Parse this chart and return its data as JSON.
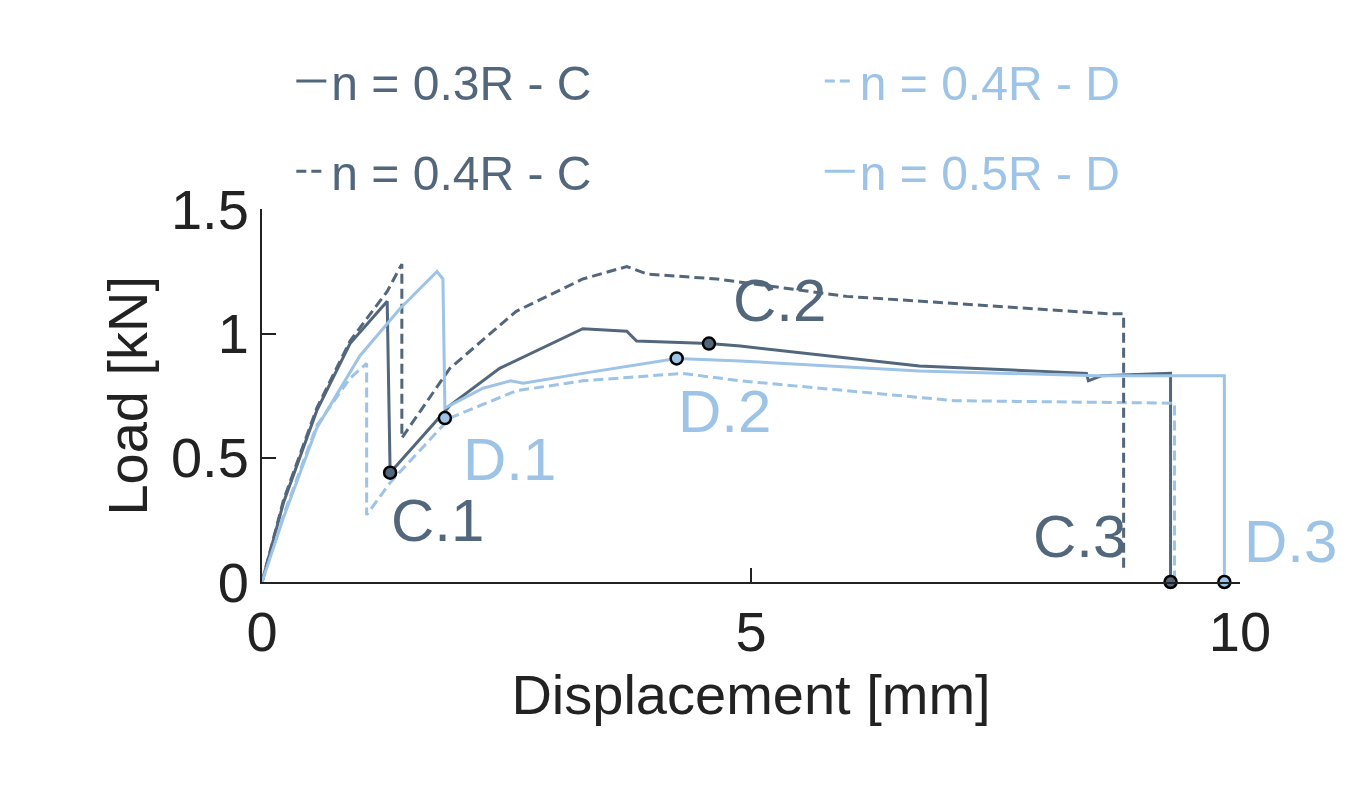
{
  "chart_data": {
    "type": "line",
    "xlabel": "Displacement [mm]",
    "ylabel": "Load [kN]",
    "xlim": [
      0,
      10
    ],
    "ylim": [
      0,
      1.5
    ],
    "xticks": [
      0,
      5,
      10
    ],
    "yticks": [
      0,
      0.5,
      1,
      1.5
    ],
    "legend": "top",
    "marker": "none",
    "series": [
      {
        "name": "n = 0.3R - C",
        "color": "#52677c",
        "line_style": "solid",
        "x": [
          0,
          0.22,
          0.56,
          0.9,
          1.28,
          1.31,
          1.92,
          2.43,
          3.28,
          3.73,
          3.83,
          4.57,
          4.89,
          6.72,
          8.43,
          8.45,
          8.58,
          9.29,
          9.29
        ],
        "values": [
          0,
          0.32,
          0.69,
          0.96,
          1.13,
          0.44,
          0.71,
          0.86,
          1.02,
          1.01,
          0.97,
          0.96,
          0.95,
          0.87,
          0.84,
          0.81,
          0.83,
          0.84,
          0
        ]
      },
      {
        "name": "n = 0.4R - D",
        "color": "#9dc3e6",
        "line_style": "dashed",
        "x": [
          0,
          0.22,
          0.56,
          0.9,
          1.07,
          1.07,
          1.31,
          1.92,
          2.6,
          3.28,
          4.3,
          4.89,
          7.08,
          9.33,
          9.33
        ],
        "values": [
          0,
          0.27,
          0.63,
          0.82,
          0.88,
          0.27,
          0.4,
          0.66,
          0.77,
          0.81,
          0.84,
          0.81,
          0.73,
          0.72,
          0
        ]
      },
      {
        "name": "n = 0.4R - C",
        "color": "#52677c",
        "line_style": "dashed",
        "x": [
          0,
          0.22,
          0.56,
          0.9,
          1.28,
          1.43,
          1.43,
          1.92,
          2.6,
          3.28,
          3.73,
          3.94,
          4.65,
          5.98,
          8.65,
          8.81,
          8.81
        ],
        "values": [
          0,
          0.33,
          0.7,
          0.97,
          1.17,
          1.28,
          0.58,
          0.86,
          1.09,
          1.22,
          1.27,
          1.24,
          1.22,
          1.15,
          1.08,
          1.08,
          0.05
        ]
      },
      {
        "name": "n = 0.5R - D",
        "color": "#9dc3e6",
        "line_style": "solid",
        "x": [
          0,
          0.22,
          0.56,
          1.0,
          1.41,
          1.79,
          1.85,
          1.87,
          2.26,
          2.54,
          2.67,
          3.28,
          4.24,
          4.89,
          6.72,
          8.54,
          9.84,
          9.84
        ],
        "values": [
          0,
          0.26,
          0.62,
          0.91,
          1.1,
          1.25,
          1.22,
          0.7,
          0.78,
          0.81,
          0.8,
          0.84,
          0.9,
          0.89,
          0.85,
          0.83,
          0.83,
          0
        ]
      },
      {
        "type": "scatter",
        "marker": "circle",
        "x": [
          1.31,
          1.87,
          4.57,
          4.24,
          9.29,
          9.84
        ],
        "values": [
          0.44,
          0.66,
          0.96,
          0.9,
          0,
          0
        ],
        "colors": [
          "#52677c",
          "#9dc3e6",
          "#52677c",
          "#9dc3e6",
          "#52677c",
          "#9dc3e6"
        ]
      }
    ],
    "annotations": [
      {
        "text": "C.1",
        "x": 1.31,
        "y": 0.44
      },
      {
        "text": "D.1",
        "x": 1.87,
        "y": 0.66
      },
      {
        "text": "C.2",
        "x": 4.57,
        "y": 0.96
      },
      {
        "text": "D.2",
        "x": 4.24,
        "y": 0.9
      },
      {
        "text": "C.3",
        "x": 9.29,
        "y": 0
      },
      {
        "text": "D.3",
        "x": 9.84,
        "y": 0
      }
    ]
  }
}
